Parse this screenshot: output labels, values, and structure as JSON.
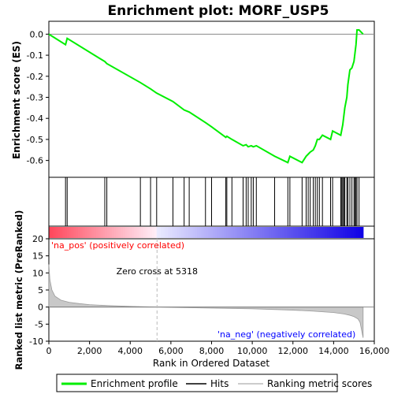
{
  "chart_data": {
    "type": "line",
    "title": "Enrichment plot: MORF_USP5",
    "top_panel": {
      "ylabel": "Enrichment score (ES)",
      "ylim": [
        -0.65,
        0.05
      ],
      "yticks": [
        "0.0",
        "-0.1",
        "-0.2",
        "-0.3",
        "-0.4",
        "-0.5",
        "-0.6"
      ],
      "series": [
        {
          "name": "Enrichment profile",
          "color": "#00ee00",
          "x": [
            0,
            820,
            900,
            2750,
            2850,
            4500,
            5000,
            5300,
            6100,
            6650,
            6900,
            7700,
            8000,
            8700,
            8750,
            9000,
            9550,
            9700,
            9800,
            9950,
            10050,
            10200,
            11100,
            11750,
            11850,
            12450,
            12650,
            12750,
            12850,
            13000,
            13100,
            13200,
            13300,
            13450,
            13850,
            13950,
            14350,
            14450,
            14500,
            14550,
            14650,
            14700,
            14800,
            14900,
            15000,
            15050,
            15100,
            15150,
            15250,
            15450
          ],
          "y": [
            0.0,
            -0.05,
            -0.02,
            -0.13,
            -0.14,
            -0.23,
            -0.26,
            -0.28,
            -0.32,
            -0.36,
            -0.37,
            -0.42,
            -0.44,
            -0.49,
            -0.485,
            -0.5,
            -0.53,
            -0.525,
            -0.535,
            -0.53,
            -0.535,
            -0.53,
            -0.58,
            -0.61,
            -0.58,
            -0.61,
            -0.58,
            -0.57,
            -0.56,
            -0.55,
            -0.53,
            -0.5,
            -0.5,
            -0.48,
            -0.5,
            -0.46,
            -0.48,
            -0.43,
            -0.39,
            -0.35,
            -0.3,
            -0.24,
            -0.17,
            -0.16,
            -0.13,
            -0.09,
            -0.05,
            0.02,
            0.02,
            0.0
          ]
        }
      ]
    },
    "hits_panel": {
      "series_name": "Hits",
      "positions": [
        820,
        900,
        2750,
        2850,
        4500,
        5000,
        5300,
        6100,
        6650,
        6900,
        7700,
        8000,
        8700,
        8750,
        9000,
        9550,
        9700,
        9800,
        9950,
        10050,
        10200,
        11100,
        11750,
        11850,
        12450,
        12650,
        12750,
        12850,
        13000,
        13100,
        13200,
        13300,
        13450,
        13850,
        13950,
        14350,
        14400,
        14450,
        14500,
        14550,
        14650,
        14700,
        14800,
        14900,
        15000,
        15050,
        15100,
        15150,
        15250
      ]
    },
    "bottom_panel": {
      "ylabel": "Ranked list metric (PreRanked)",
      "xlabel": "Rank in Ordered Dataset",
      "xlim": [
        0,
        16000
      ],
      "ylim": [
        -10,
        20
      ],
      "xticks": [
        "0",
        "2,000",
        "4,000",
        "6,000",
        "8,000",
        "10,000",
        "12,000",
        "14,000",
        "16,000"
      ],
      "yticks": [
        "20",
        "15",
        "10",
        "5",
        "0",
        "-5",
        "-10"
      ],
      "series_name": "Ranking metric scores",
      "x": [
        0,
        50,
        150,
        300,
        600,
        1000,
        1500,
        2000,
        3000,
        4000,
        5318,
        6000,
        8000,
        10000,
        12000,
        13000,
        14000,
        14500,
        14800,
        15000,
        15200,
        15300,
        15450
      ],
      "y": [
        12.5,
        8,
        5,
        3.2,
        2.0,
        1.4,
        1.0,
        0.7,
        0.4,
        0.2,
        0.0,
        -0.1,
        -0.3,
        -0.5,
        -0.9,
        -1.2,
        -1.6,
        -2.0,
        -2.4,
        -2.8,
        -3.5,
        -4.5,
        -9.0
      ],
      "zero_cross_label": "Zero cross at 5318",
      "zero_cross_x": 5318,
      "pos_label": "'na_pos' (positively correlated)",
      "neg_label": "'na_neg' (negatively correlated)",
      "pos_color": "#ff0000",
      "neg_color": "#0000ff"
    },
    "legend": [
      "Enrichment profile",
      "Hits",
      "Ranking metric scores"
    ]
  }
}
